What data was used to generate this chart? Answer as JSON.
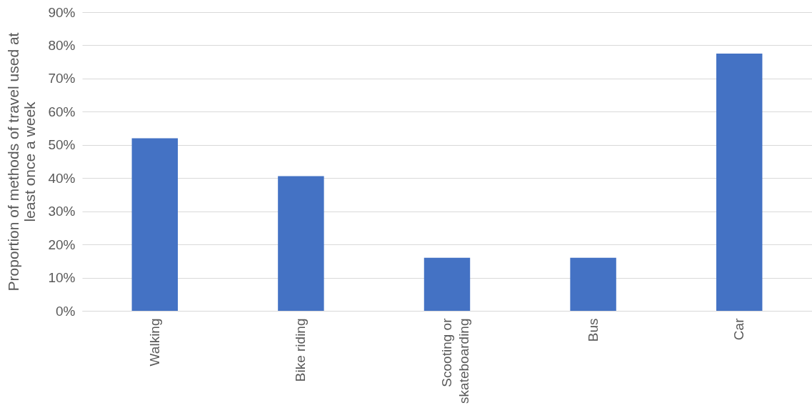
{
  "chart_data": {
    "type": "bar",
    "ylabel": "Proportion of methods of travel used at least once a week",
    "categories": [
      "Walking",
      "Bike riding",
      "Scooting or skateboarding",
      "Bus",
      "Car"
    ],
    "values": [
      52,
      40.6,
      16,
      16,
      77.5
    ],
    "color": "#4472c4",
    "ylim": [
      0,
      90
    ],
    "yticks": [
      {
        "value": 0,
        "label": "0%"
      },
      {
        "value": 10,
        "label": "10%"
      },
      {
        "value": 20,
        "label": "20%"
      },
      {
        "value": 30,
        "label": "30%"
      },
      {
        "value": 40,
        "label": "40%"
      },
      {
        "value": 50,
        "label": "50%"
      },
      {
        "value": 60,
        "label": "60%"
      },
      {
        "value": 70,
        "label": "70%"
      },
      {
        "value": 80,
        "label": "80%"
      },
      {
        "value": 90,
        "label": "90%"
      }
    ],
    "grid": true
  }
}
